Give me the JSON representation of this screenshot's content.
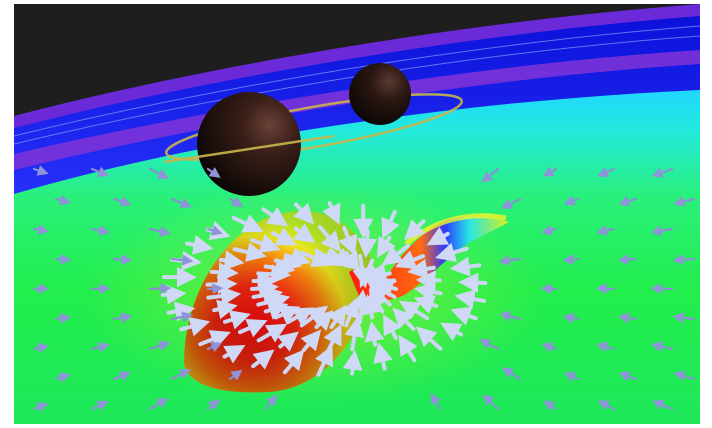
{
  "scene": {
    "description_visible_text": "",
    "palette": {
      "sky": "#1f1f1f",
      "outer_band_violet": "#7a2fd6",
      "outer_band_blue": "#1f2bff",
      "field_cyan": "#21e6e0",
      "field_green": "#22ef4a",
      "well_yellow": "#f5f31c",
      "well_orange": "#ff7a10",
      "well_red": "#ff1b10",
      "arrow_color": "#c9d4f2",
      "arrow_dim": "#8a8fd6",
      "orbit_ring": "#c9b64a",
      "body_dark": "#1b0d0b"
    },
    "icons": [
      "black-hole-sphere",
      "orbit-ring",
      "vector-field-arrow"
    ]
  }
}
